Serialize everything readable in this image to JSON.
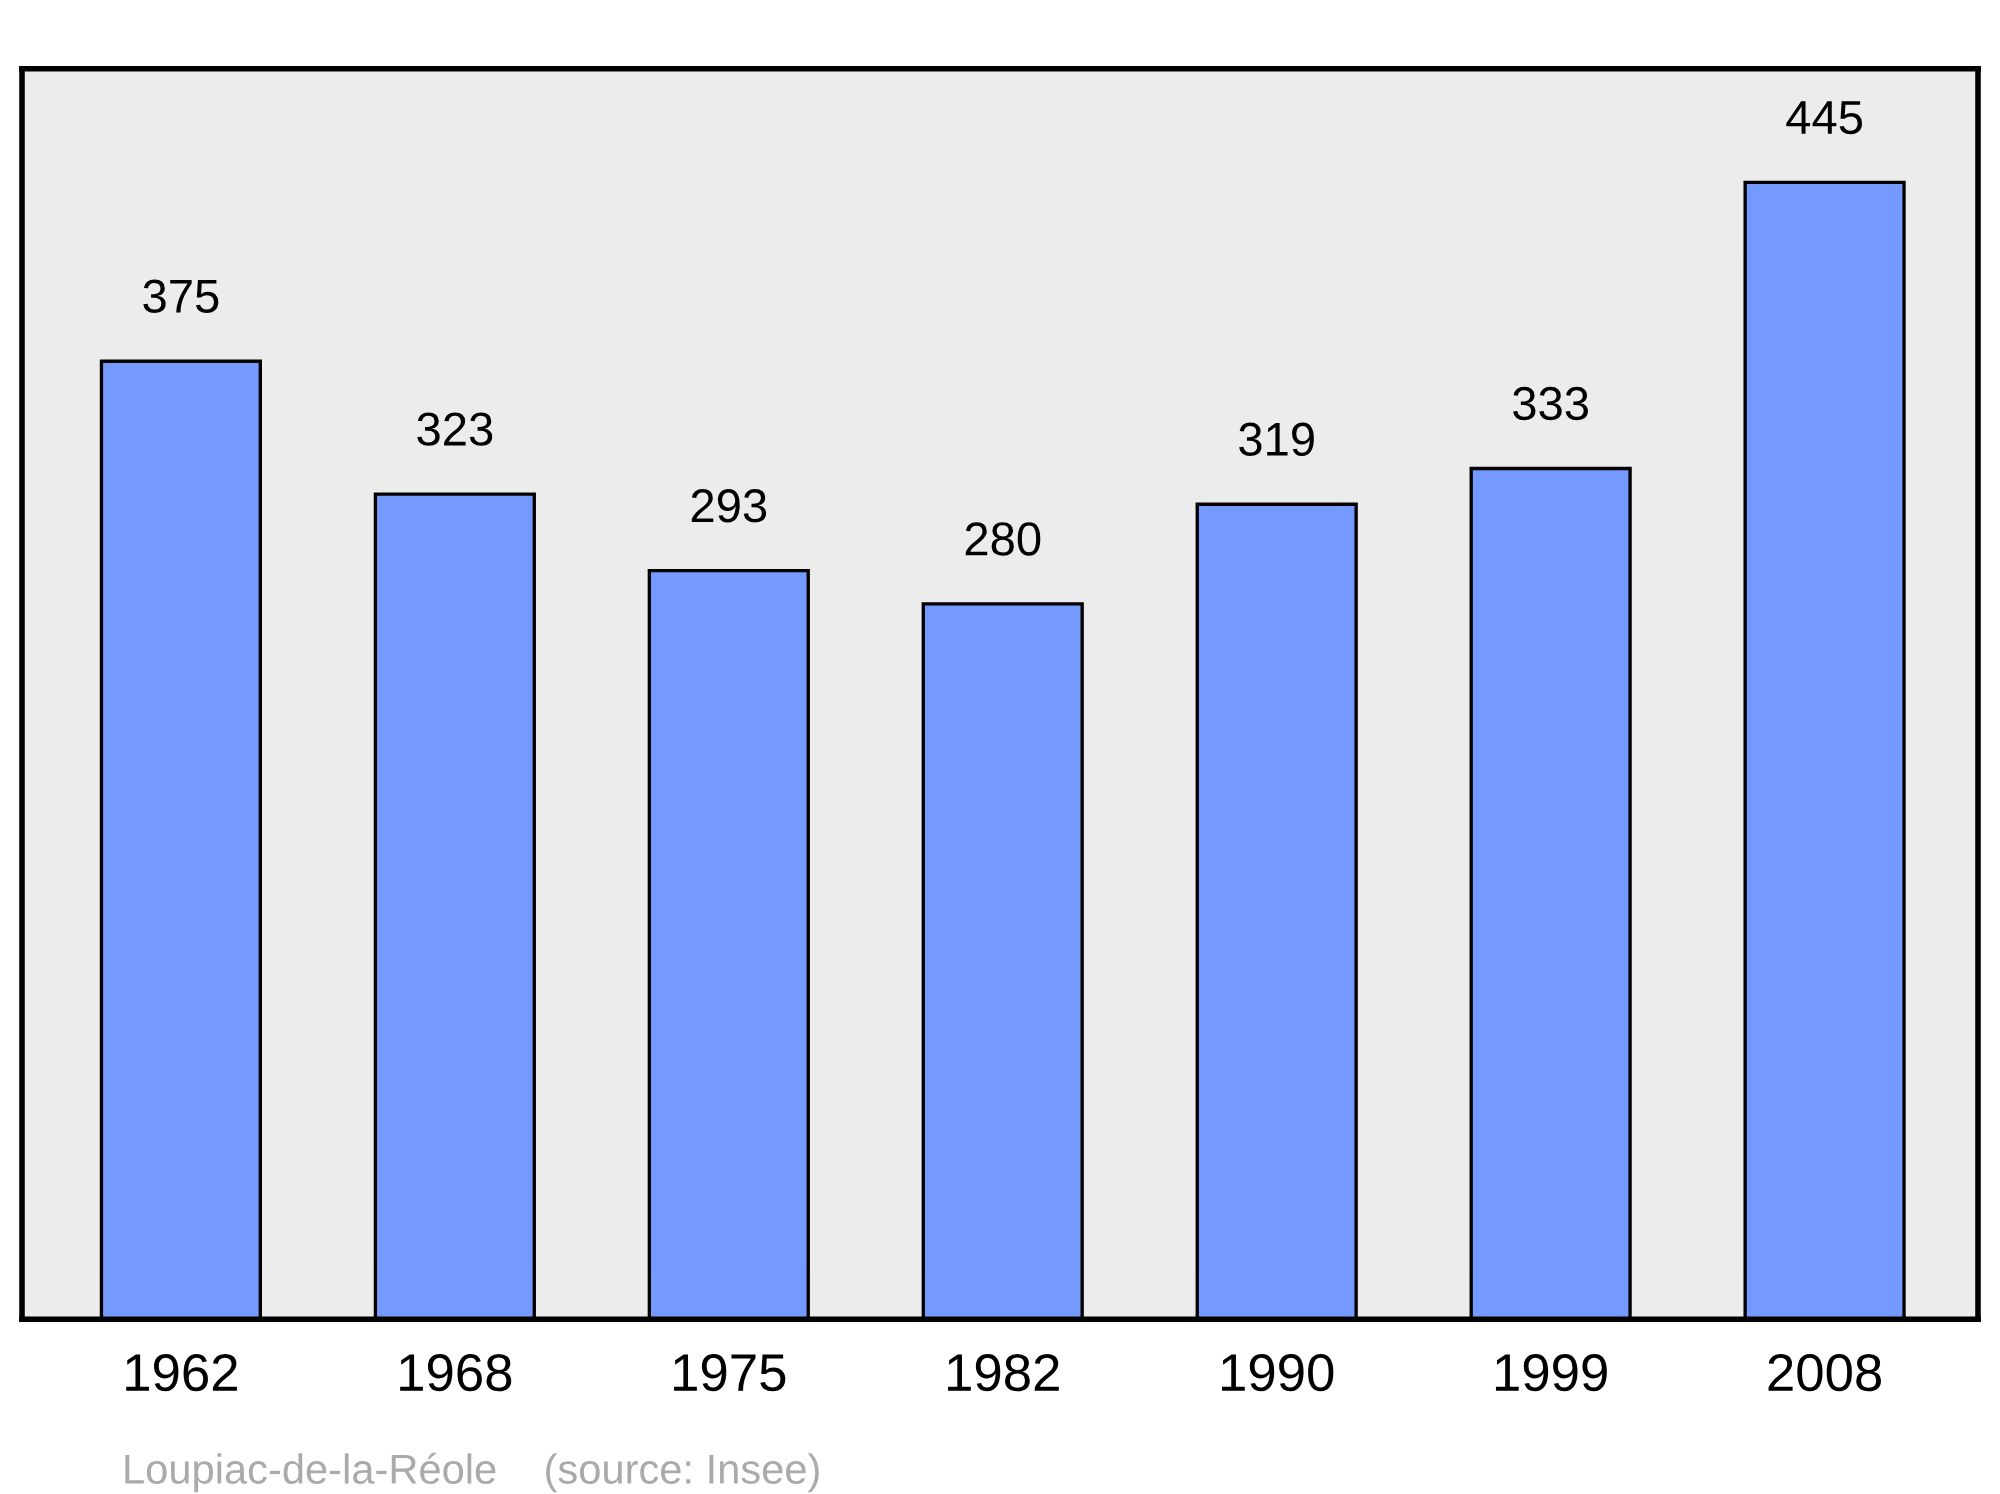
{
  "chart_data": {
    "type": "bar",
    "categories": [
      "1962",
      "1968",
      "1975",
      "1982",
      "1990",
      "1999",
      "2008"
    ],
    "values": [
      375,
      323,
      293,
      280,
      319,
      333,
      445
    ],
    "color": "#7499ff",
    "data_labels": true,
    "grid": false,
    "legend": false,
    "annotations": [
      "Loupiac-de-la-Réole    (source: Insee)"
    ]
  }
}
